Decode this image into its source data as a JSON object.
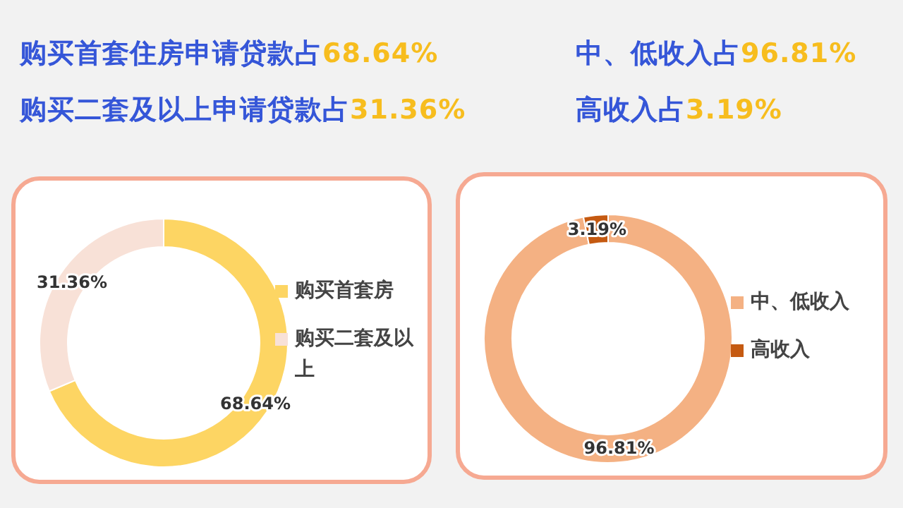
{
  "chart_data": [
    {
      "type": "donut",
      "annotations": [
        "购买首套住房申请贷款占68.64%",
        "购买二套及以上申请贷款占31.36%"
      ],
      "categories": [
        "购买首套房",
        "购买二套及以上"
      ],
      "values": [
        68.64,
        31.36
      ],
      "colors": [
        "#fdd563",
        "#f8e1d7"
      ],
      "value_labels": [
        "68.64%",
        "31.36%"
      ],
      "legend": "right"
    },
    {
      "type": "donut",
      "annotations": [
        "中、低收入占96.81%",
        "高收入占3.19%"
      ],
      "categories": [
        "中、低收入",
        "高收入"
      ],
      "values": [
        96.81,
        3.19
      ],
      "colors": [
        "#f4b183",
        "#c55a11"
      ],
      "value_labels": [
        "96.81%",
        "3.19%"
      ],
      "legend": "right"
    }
  ]
}
